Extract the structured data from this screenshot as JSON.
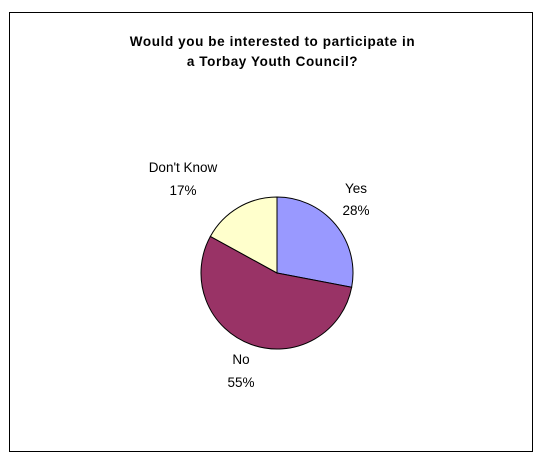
{
  "chart_data": {
    "type": "pie",
    "title": "Would you be interested to participate in\na Torbay Youth Council?",
    "categories": [
      "Yes",
      "No",
      "Don't Know"
    ],
    "values": [
      28,
      55,
      17
    ],
    "labels": [
      "28%",
      "55%",
      "17%"
    ],
    "colors": [
      "#9999ff",
      "#993366",
      "#ffffcc"
    ],
    "legend": "none"
  }
}
